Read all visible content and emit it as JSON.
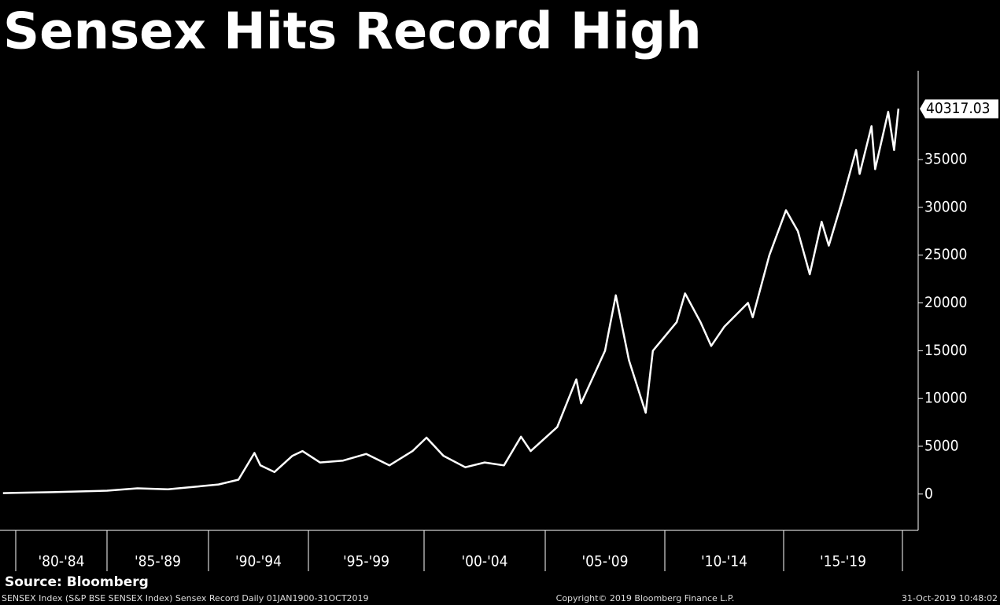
{
  "chart_data": {
    "type": "line",
    "title": "Sensex Hits Record High",
    "x": [
      1979.3,
      1980,
      1982,
      1985,
      1986.5,
      1988,
      1989.5,
      1990.5,
      1991.5,
      1992.3,
      1992.6,
      1993.3,
      1994.2,
      1994.7,
      1995.5,
      1996.5,
      1997.5,
      1998.5,
      1999.5,
      2000.1,
      2000.8,
      2001.7,
      2002.5,
      2003.3,
      2004.0,
      2004.4,
      2005.5,
      2006.3,
      2006.5,
      2007.5,
      2007.95,
      2008.5,
      2009.2,
      2009.5,
      2010.5,
      2010.85,
      2011.5,
      2011.95,
      2012.5,
      2013.5,
      2013.7,
      2014.4,
      2015.1,
      2015.6,
      2016.1,
      2016.6,
      2016.9,
      2017.5,
      2018.05,
      2018.2,
      2018.7,
      2018.85,
      2019.4,
      2019.65,
      2019.83
    ],
    "values": [
      100,
      120,
      200,
      350,
      600,
      500,
      800,
      1000,
      1500,
      4300,
      3000,
      2300,
      4000,
      4500,
      3300,
      3500,
      4200,
      3000,
      4500,
      5900,
      4000,
      2800,
      3300,
      3000,
      6000,
      4500,
      7000,
      12000,
      9500,
      15000,
      20800,
      14000,
      8500,
      15000,
      18000,
      21000,
      18000,
      15500,
      17500,
      20000,
      18500,
      25000,
      29700,
      27500,
      23000,
      28500,
      26000,
      31000,
      36000,
      33500,
      38500,
      34000,
      40000,
      36000,
      40317.03
    ],
    "color": "#ffffff",
    "ylim": [
      -3800,
      44300
    ],
    "yticks": [
      0,
      5000,
      10000,
      15000,
      20000,
      25000,
      30000,
      35000
    ],
    "xticks": [
      1980,
      1985,
      1990,
      1995,
      2000,
      2005,
      2010,
      2015,
      2020
    ],
    "x_periods": [
      "'80-'84",
      "'85-'89",
      "'90-'94",
      "'95-'99",
      "'00-'04",
      "'05-'09",
      "'10-'14",
      "'15-'19"
    ],
    "grid": false,
    "source": "Source: Bloomberg",
    "footer": {
      "left": "SENSEX Index (S&P BSE SENSEX Index) Sensex Record  Daily 01JAN1900-31OCT2019",
      "center": "Copyright© 2019 Bloomberg Finance L.P.",
      "right": "31-Oct-2019 10:48:02"
    }
  }
}
